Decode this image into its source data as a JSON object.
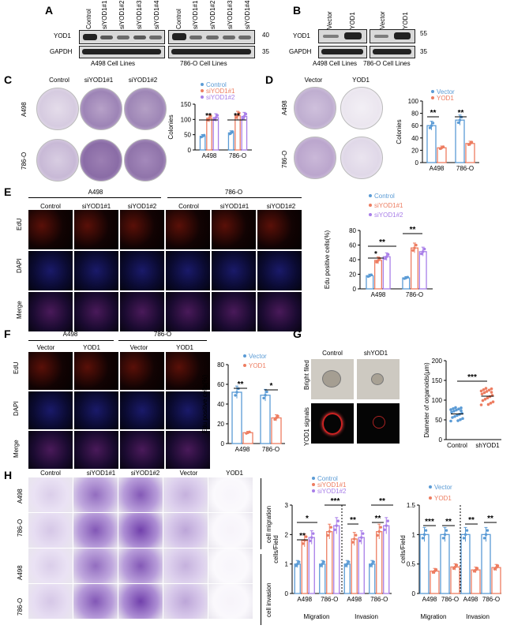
{
  "panels": {
    "A": "A",
    "B": "B",
    "C": "C",
    "D": "D",
    "E": "E",
    "F": "F",
    "G": "G",
    "H": "H"
  },
  "panelA": {
    "lanes1": [
      "Control",
      "siYOD1#1",
      "siYOD1#2",
      "siYOD1#3",
      "siYOD1#4"
    ],
    "lanes2": [
      "Control",
      "siYOD1#1",
      "siYOD1#2",
      "siYOD1#3",
      "siYOD1#4"
    ],
    "rows": [
      "YOD1",
      "GAPDH"
    ],
    "mw": [
      "40",
      "35"
    ],
    "cell1": "A498 Cell Lines",
    "cell2": "786-O Cell Lines"
  },
  "panelB": {
    "lanes": [
      "Vector",
      "YOD1",
      "Vector",
      "YOD1"
    ],
    "rows": [
      "YOD1",
      "GAPDH"
    ],
    "mw": [
      "55",
      "35"
    ],
    "cell1": "A498 Cell Lines",
    "cell2": "786-O Cell Lines"
  },
  "panelC": {
    "cols": [
      "Control",
      "siYOD1#1",
      "siYOD1#2"
    ],
    "rows": [
      "A498",
      "786-O"
    ]
  },
  "panelD": {
    "cols": [
      "Vector",
      "YOD1"
    ],
    "rows": [
      "A498",
      "786-O"
    ]
  },
  "panelE": {
    "groups": [
      "A498",
      "786-O"
    ],
    "cols": [
      "Control",
      "siYOD1#1",
      "siYOD1#2",
      "Control",
      "siYOD1#1",
      "siYOD1#2"
    ],
    "rows": [
      "EdU",
      "DAPI",
      "Merge"
    ]
  },
  "panelF": {
    "groups": [
      "A498",
      "786-O"
    ],
    "cols": [
      "Vector",
      "YOD1",
      "Vector",
      "YOD1"
    ],
    "rows": [
      "EdU",
      "DAPI",
      "Merge"
    ]
  },
  "panelG": {
    "cols": [
      "Control",
      "shYOD1"
    ],
    "rows": [
      "Bright filed",
      "YOD1 signals"
    ]
  },
  "panelH": {
    "cols": [
      "Control",
      "siYOD1#1",
      "siYOD1#2",
      "Vector",
      "YOD1"
    ],
    "rows": [
      "A498",
      "786-O",
      "A498",
      "786-O"
    ],
    "side": [
      "cell migration",
      "cell invasion"
    ]
  },
  "chart_data": [
    {
      "id": "C",
      "type": "bar",
      "series": [
        {
          "name": "Control",
          "values": [
            45,
            56
          ]
        },
        {
          "name": "siYOD1#1",
          "values": [
            104,
            113
          ]
        },
        {
          "name": "siYOD1#2",
          "values": [
            106,
            110
          ]
        }
      ],
      "categories": [
        "A498",
        "786-O"
      ],
      "ylabel": "Colonies",
      "ylim": [
        0,
        150
      ],
      "yticks": [
        0,
        50,
        100,
        150
      ],
      "sig": [
        "**",
        "**"
      ],
      "colors": [
        "#5b9bd5",
        "#ed7d61",
        "#a87ee8"
      ]
    },
    {
      "id": "D",
      "type": "bar",
      "series": [
        {
          "name": "Vector",
          "values": [
            60,
            69
          ]
        },
        {
          "name": "YOD1",
          "values": [
            24,
            31
          ]
        }
      ],
      "categories": [
        "A498",
        "786-O"
      ],
      "ylabel": "Colonies",
      "ylim": [
        0,
        100
      ],
      "yticks": [
        0,
        20,
        40,
        60,
        80,
        100
      ],
      "sig": [
        "**",
        "**"
      ],
      "colors": [
        "#5b9bd5",
        "#ed7d61"
      ]
    },
    {
      "id": "E",
      "type": "bar",
      "series": [
        {
          "name": "Control",
          "values": [
            18,
            15
          ]
        },
        {
          "name": "siYOD1#1",
          "values": [
            39,
            56
          ]
        },
        {
          "name": "siYOD1#2",
          "values": [
            44,
            51
          ]
        }
      ],
      "categories": [
        "A498",
        "786-O"
      ],
      "ylabel": "Edu positive cells(%)",
      "ylim": [
        0,
        80
      ],
      "yticks": [
        0,
        20,
        40,
        60,
        80
      ],
      "sig": [
        "*",
        "**",
        "**"
      ],
      "colors": [
        "#5b9bd5",
        "#ed7d61",
        "#a87ee8"
      ]
    },
    {
      "id": "F",
      "type": "bar",
      "series": [
        {
          "name": "Vector",
          "values": [
            52,
            49
          ]
        },
        {
          "name": "YOD1",
          "values": [
            11,
            26
          ]
        }
      ],
      "categories": [
        "A498",
        "786-O"
      ],
      "ylabel": "Edu positive cells(%)",
      "ylim": [
        0,
        80
      ],
      "yticks": [
        0,
        20,
        40,
        60,
        80
      ],
      "sig": [
        "**",
        "*"
      ],
      "colors": [
        "#5b9bd5",
        "#ed7d61"
      ]
    },
    {
      "id": "G",
      "type": "scatter",
      "categories": [
        "Control",
        "shYOD1"
      ],
      "values": [
        65,
        110
      ],
      "ylabel": "Diameter of organoids(μm)",
      "ylim": [
        0,
        200
      ],
      "yticks": [
        0,
        50,
        100,
        150,
        200
      ],
      "sig": [
        "***"
      ],
      "colors": [
        "#5b9bd5",
        "#ed7d61"
      ]
    },
    {
      "id": "H1",
      "type": "bar",
      "series": [
        {
          "name": "Control",
          "values": [
            1,
            1,
            1,
            1
          ]
        },
        {
          "name": "siYOD1#1",
          "values": [
            1.8,
            2.1,
            1.85,
            2.1
          ]
        },
        {
          "name": "siYOD1#2",
          "values": [
            1.9,
            2.3,
            1.9,
            2.3
          ]
        }
      ],
      "categories": [
        "A498",
        "786-O",
        "A498",
        "786-O"
      ],
      "groups": [
        "Migration",
        "Invasion"
      ],
      "ylabel": "cells/Field",
      "ylim": [
        0,
        3
      ],
      "yticks": [
        0,
        1,
        2,
        3
      ],
      "sig": [
        "**",
        "*",
        "***",
        "**",
        "**",
        "**",
        "***"
      ],
      "colors": [
        "#5b9bd5",
        "#ed7d61",
        "#a87ee8"
      ]
    },
    {
      "id": "H2",
      "type": "bar",
      "series": [
        {
          "name": "Vector",
          "values": [
            1,
            1,
            1,
            1
          ]
        },
        {
          "name": "YOD1",
          "values": [
            0.38,
            0.45,
            0.4,
            0.44
          ]
        }
      ],
      "categories": [
        "A498",
        "786-O",
        "A498",
        "786-O"
      ],
      "groups": [
        "Migration",
        "Invasion"
      ],
      "ylabel": "cells/Field",
      "ylim": [
        0,
        1.5
      ],
      "yticks": [
        0,
        0.5,
        1,
        1.5
      ],
      "sig": [
        "***",
        "**",
        "**",
        "**"
      ],
      "colors": [
        "#5b9bd5",
        "#ed7d61"
      ]
    }
  ]
}
